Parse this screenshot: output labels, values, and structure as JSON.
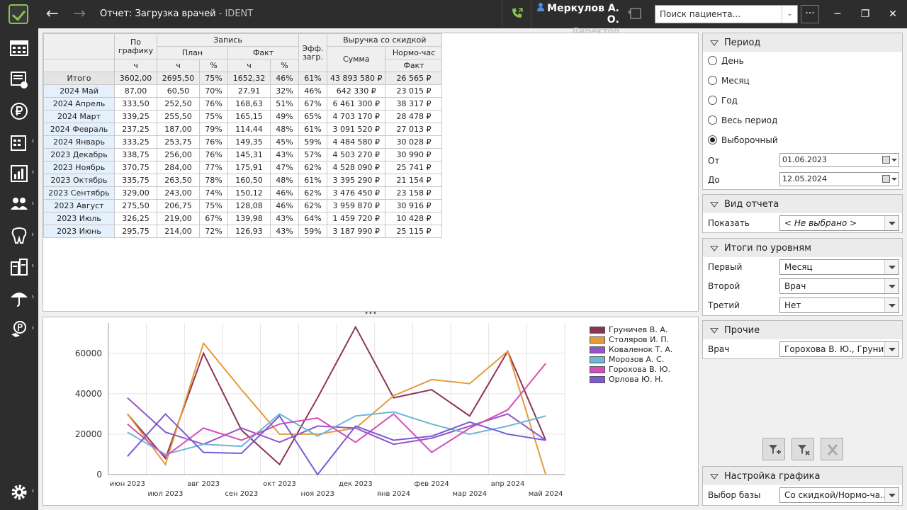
{
  "titlebar": {
    "title": "Отчет: Загрузка врачей",
    "title_suffix": " - IDENT",
    "user_name": "Меркулов А. О.",
    "user_role": "Директор",
    "search_placeholder": "Поиск пациента...",
    "more": "···"
  },
  "table": {
    "header": {
      "po_grafiku": "По графику",
      "zapis": "Запись",
      "plan": "План",
      "fakt": "Факт",
      "eff": "Эфф. загр.",
      "vyruchka": "Выручка со скидкой",
      "summa": "Сумма",
      "normochas": "Нормо-час",
      "fakt2": "Факт",
      "unit_h": "ч",
      "unit_pct": "%"
    },
    "total": {
      "period": "Итого",
      "sched": "3602,00",
      "plan_h": "2695,50",
      "plan_pct": "75%",
      "fact_h": "1652,32",
      "fact_pct": "46%",
      "eff": "61%",
      "sum": "43 893 580 ₽",
      "norm": "26 565 ₽"
    },
    "rows": [
      {
        "period": "2024 Май",
        "sched": "87,00",
        "plan_h": "60,50",
        "plan_pct": "70%",
        "fact_h": "27,91",
        "fact_pct": "32%",
        "eff": "46%",
        "sum": "642 330 ₽",
        "norm": "23 015 ₽"
      },
      {
        "period": "2024 Апрель",
        "sched": "333,50",
        "plan_h": "252,50",
        "plan_pct": "76%",
        "fact_h": "168,63",
        "fact_pct": "51%",
        "eff": "67%",
        "sum": "6 461 300 ₽",
        "norm": "38 317 ₽"
      },
      {
        "period": "2024 Март",
        "sched": "339,25",
        "plan_h": "255,50",
        "plan_pct": "75%",
        "fact_h": "165,15",
        "fact_pct": "49%",
        "eff": "65%",
        "sum": "4 703 170 ₽",
        "norm": "28 478 ₽"
      },
      {
        "period": "2024 Февраль",
        "sched": "237,25",
        "plan_h": "187,00",
        "plan_pct": "79%",
        "fact_h": "114,44",
        "fact_pct": "48%",
        "eff": "61%",
        "sum": "3 091 520 ₽",
        "norm": "27 013 ₽"
      },
      {
        "period": "2024 Январь",
        "sched": "333,25",
        "plan_h": "253,75",
        "plan_pct": "76%",
        "fact_h": "149,35",
        "fact_pct": "45%",
        "eff": "59%",
        "sum": "4 484 580 ₽",
        "norm": "30 028 ₽"
      },
      {
        "period": "2023 Декабрь",
        "sched": "338,75",
        "plan_h": "256,00",
        "plan_pct": "76%",
        "fact_h": "145,31",
        "fact_pct": "43%",
        "eff": "57%",
        "sum": "4 503 270 ₽",
        "norm": "30 990 ₽"
      },
      {
        "period": "2023 Ноябрь",
        "sched": "370,75",
        "plan_h": "284,00",
        "plan_pct": "77%",
        "fact_h": "175,91",
        "fact_pct": "47%",
        "eff": "62%",
        "sum": "4 528 090 ₽",
        "norm": "25 741 ₽"
      },
      {
        "period": "2023 Октябрь",
        "sched": "335,75",
        "plan_h": "263,50",
        "plan_pct": "78%",
        "fact_h": "160,50",
        "fact_pct": "48%",
        "eff": "61%",
        "sum": "3 395 290 ₽",
        "norm": "21 154 ₽"
      },
      {
        "period": "2023 Сентябрь",
        "sched": "329,00",
        "plan_h": "243,00",
        "plan_pct": "74%",
        "fact_h": "150,12",
        "fact_pct": "46%",
        "eff": "62%",
        "sum": "3 476 450 ₽",
        "norm": "23 158 ₽"
      },
      {
        "period": "2023 Август",
        "sched": "275,50",
        "plan_h": "206,75",
        "plan_pct": "75%",
        "fact_h": "128,08",
        "fact_pct": "46%",
        "eff": "62%",
        "sum": "3 959 870 ₽",
        "norm": "30 916 ₽"
      },
      {
        "period": "2023 Июль",
        "sched": "326,25",
        "plan_h": "219,00",
        "plan_pct": "67%",
        "fact_h": "139,98",
        "fact_pct": "43%",
        "eff": "64%",
        "sum": "1 459 720 ₽",
        "norm": "10 428 ₽"
      },
      {
        "period": "2023 Июнь",
        "sched": "295,75",
        "plan_h": "214,00",
        "plan_pct": "72%",
        "fact_h": "126,93",
        "fact_pct": "43%",
        "eff": "59%",
        "sum": "3 187 990 ₽",
        "norm": "25 115 ₽"
      }
    ]
  },
  "panel": {
    "period": {
      "title": "Период",
      "options": [
        "День",
        "Месяц",
        "Год",
        "Весь период",
        "Выборочный"
      ],
      "selected_index": 4,
      "from_label": "От",
      "from_value": "01.06.2023",
      "to_label": "До",
      "to_value": "12.05.2024"
    },
    "report_type": {
      "title": "Вид отчета",
      "show_label": "Показать",
      "show_value": "< Не выбрано >"
    },
    "levels": {
      "title": "Итоги по уровням",
      "first_label": "Первый",
      "first_value": "Месяц",
      "second_label": "Второй",
      "second_value": "Врач",
      "third_label": "Третий",
      "third_value": "Нет"
    },
    "other": {
      "title": "Прочие",
      "doctor_label": "Врач",
      "doctor_value": "Горохова В. Ю., Груни..."
    },
    "chart_settings": {
      "title": "Настройка графика",
      "base_label": "Выбор базы",
      "base_value": "Со скидкой/Нормо-ча..."
    }
  },
  "chart_data": {
    "type": "line",
    "x": [
      "июн 2023",
      "июл 2023",
      "авг 2023",
      "сен 2023",
      "окт 2023",
      "ноя 2023",
      "дек 2023",
      "янв 2024",
      "фев 2024",
      "мар 2024",
      "апр 2024",
      "май 2024"
    ],
    "ylim": [
      0,
      75000
    ],
    "yticks": [
      0,
      20000,
      40000,
      60000
    ],
    "grid": true,
    "legend_position": "top-right",
    "series": [
      {
        "name": "Груничев В. А.",
        "color": "#8e3354",
        "values": [
          30000,
          8000,
          60000,
          22000,
          5000,
          38000,
          73000,
          38000,
          42000,
          29000,
          61000,
          17000
        ]
      },
      {
        "name": "Столяров И. П.",
        "color": "#e69a3c",
        "values": [
          30000,
          5000,
          65000,
          42000,
          20000,
          20000,
          23000,
          39000,
          47000,
          45000,
          61000,
          0
        ]
      },
      {
        "name": "Коваленок Т. А.",
        "color": "#9356c8",
        "values": [
          38000,
          21000,
          15000,
          23000,
          16000,
          24000,
          23000,
          15000,
          18000,
          24000,
          30000,
          17000
        ]
      },
      {
        "name": "Морозов А. С.",
        "color": "#6fb6d8",
        "values": [
          21000,
          10000,
          15000,
          14000,
          30000,
          19000,
          29000,
          31000,
          25000,
          20000,
          24000,
          29000
        ]
      },
      {
        "name": "Горохова В. Ю.",
        "color": "#d44fb8",
        "values": [
          25000,
          9000,
          23000,
          17000,
          25000,
          28000,
          16000,
          30000,
          11000,
          23000,
          32000,
          55000
        ]
      },
      {
        "name": "Орлова Ю. Н.",
        "color": "#7b5ad6",
        "values": [
          9000,
          30000,
          11000,
          10500,
          29000,
          0,
          24000,
          17000,
          19000,
          26000,
          20000,
          17000
        ]
      }
    ]
  }
}
